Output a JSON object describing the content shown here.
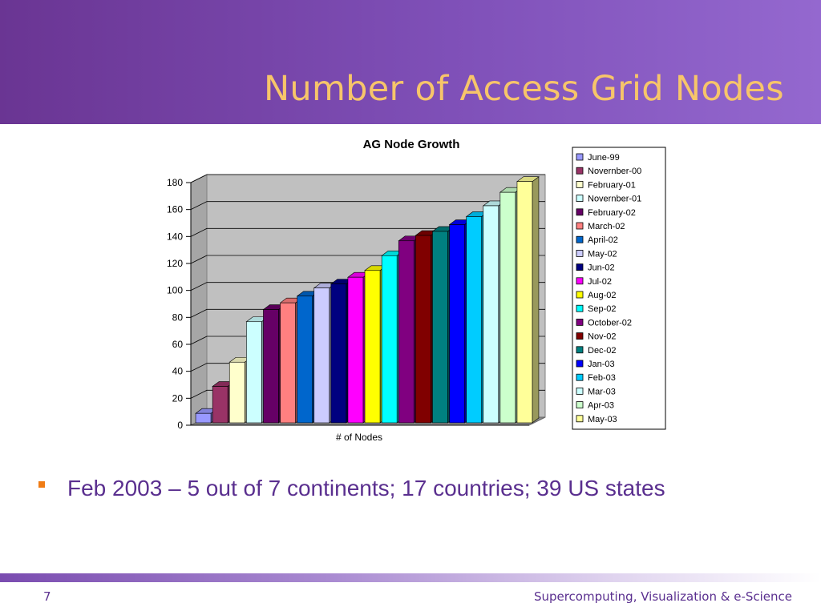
{
  "slide": {
    "title": "Number of Access Grid Nodes",
    "bullets": [
      "Feb 2003 – 5 out of 7 continents; 17 countries; 39 US states"
    ],
    "slide_number": "7",
    "footer": "Supercomputing, Visualization & e-Science"
  },
  "colors": {
    "header_start": "#6a3593",
    "header_end": "#9468cf",
    "title": "#f7c56a",
    "text": "#5a2f8f",
    "bullet": "#f07c14",
    "plot_background": "#c0c0c0"
  },
  "chart_data": {
    "type": "bar",
    "title": "AG Node Growth",
    "xlabel": "# of Nodes",
    "ylabel": "",
    "ylim": [
      0,
      180
    ],
    "yticks": [
      0,
      20,
      40,
      60,
      80,
      100,
      120,
      140,
      160,
      180
    ],
    "grid": true,
    "legend_position": "right",
    "series": [
      {
        "name": "June-99",
        "values": [
          7
        ],
        "color": "#9999ff"
      },
      {
        "name": "Novernber-00",
        "values": [
          27
        ],
        "color": "#993366"
      },
      {
        "name": "February-01",
        "values": [
          45
        ],
        "color": "#ffffcc"
      },
      {
        "name": "Novernber-01",
        "values": [
          75
        ],
        "color": "#ccffff"
      },
      {
        "name": "February-02",
        "values": [
          84
        ],
        "color": "#660066"
      },
      {
        "name": "March-02",
        "values": [
          89
        ],
        "color": "#ff8080"
      },
      {
        "name": "April-02",
        "values": [
          94
        ],
        "color": "#0066cc"
      },
      {
        "name": "May-02",
        "values": [
          100
        ],
        "color": "#ccccff"
      },
      {
        "name": "Jun-02",
        "values": [
          103
        ],
        "color": "#000080"
      },
      {
        "name": "Jul-02",
        "values": [
          108
        ],
        "color": "#ff00ff"
      },
      {
        "name": "Aug-02",
        "values": [
          113
        ],
        "color": "#ffff00"
      },
      {
        "name": "Sep-02",
        "values": [
          124
        ],
        "color": "#00ffff"
      },
      {
        "name": "October-02",
        "values": [
          135
        ],
        "color": "#800080"
      },
      {
        "name": "Nov-02",
        "values": [
          139
        ],
        "color": "#800000"
      },
      {
        "name": "Dec-02",
        "values": [
          142
        ],
        "color": "#008080"
      },
      {
        "name": "Jan-03",
        "values": [
          147
        ],
        "color": "#0000ff"
      },
      {
        "name": "Feb-03",
        "values": [
          153
        ],
        "color": "#00ccff"
      },
      {
        "name": "Mar-03",
        "values": [
          161
        ],
        "color": "#ccffff"
      },
      {
        "name": "Apr-03",
        "values": [
          171
        ],
        "color": "#ccffcc"
      },
      {
        "name": "May-03",
        "values": [
          179
        ],
        "color": "#ffff99"
      }
    ]
  }
}
